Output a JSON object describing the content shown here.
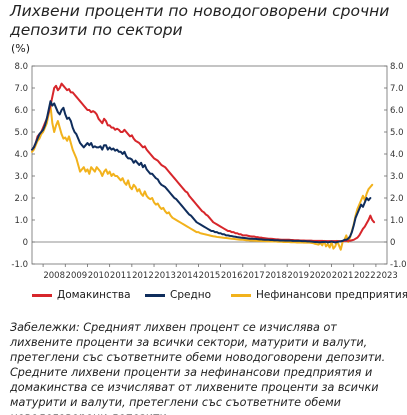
{
  "title": "Лихвени проценти по новодоговорени срочни депозити по сектори",
  "unit": "(%)",
  "note": "Забележки: Средният лихвен процент се изчислява от лихвените проценти за всички сектори, матурити и валути, претеглени със съответните обеми новодоговорени депозити. Средните лихвени проценти за нефинансови предприятия и домакинства се изчисляват от лихвените проценти за всички матурити и валути, претеглени със съответните обеми новодоговорени депозити.",
  "chart_data": {
    "type": "line",
    "ylim": [
      -1,
      8
    ],
    "y_ticks": [
      "-1.0",
      "0",
      "1.0",
      "2.0",
      "3.0",
      "4.0",
      "5.0",
      "6.0",
      "7.0",
      "8.0"
    ],
    "x_tick_labels": [
      "2008",
      "2009",
      "2010",
      "2011",
      "2012",
      "2013",
      "2014",
      "2015",
      "2016",
      "2017",
      "2018",
      "2019",
      "2020",
      "2021",
      "2022",
      "2023"
    ],
    "x_start": 2007.5,
    "x_end": 2023.5,
    "x_frequency": "monthly",
    "grid": false,
    "legend_position": "bottom",
    "series": [
      {
        "name": "Домакинства",
        "color": "#d7262b",
        "values": [
          4.2,
          4.3,
          4.5,
          4.8,
          4.9,
          5.0,
          5.2,
          5.4,
          5.6,
          5.9,
          6.2,
          6.6,
          7.0,
          7.1,
          6.9,
          7.0,
          7.2,
          7.1,
          7.0,
          6.9,
          6.95,
          6.8,
          6.8,
          6.7,
          6.6,
          6.5,
          6.4,
          6.3,
          6.2,
          6.1,
          6.0,
          6.0,
          5.9,
          5.95,
          5.9,
          5.8,
          5.6,
          5.5,
          5.4,
          5.6,
          5.5,
          5.3,
          5.3,
          5.2,
          5.2,
          5.1,
          5.15,
          5.1,
          5.0,
          5.0,
          5.1,
          5.0,
          4.9,
          4.8,
          4.85,
          4.7,
          4.6,
          4.55,
          4.5,
          4.4,
          4.3,
          4.35,
          4.2,
          4.1,
          4.0,
          3.9,
          3.8,
          3.75,
          3.7,
          3.6,
          3.5,
          3.45,
          3.4,
          3.3,
          3.2,
          3.1,
          3.0,
          2.9,
          2.8,
          2.7,
          2.6,
          2.5,
          2.4,
          2.3,
          2.25,
          2.1,
          2.0,
          1.9,
          1.8,
          1.7,
          1.6,
          1.5,
          1.4,
          1.35,
          1.25,
          1.2,
          1.1,
          1.0,
          0.9,
          0.85,
          0.8,
          0.75,
          0.7,
          0.65,
          0.6,
          0.55,
          0.5,
          0.5,
          0.45,
          0.45,
          0.4,
          0.4,
          0.35,
          0.35,
          0.3,
          0.3,
          0.3,
          0.28,
          0.26,
          0.25,
          0.25,
          0.23,
          0.22,
          0.2,
          0.2,
          0.18,
          0.17,
          0.16,
          0.15,
          0.15,
          0.14,
          0.13,
          0.12,
          0.12,
          0.11,
          0.1,
          0.1,
          0.1,
          0.1,
          0.1,
          0.09,
          0.09,
          0.08,
          0.08,
          0.08,
          0.07,
          0.07,
          0.07,
          0.06,
          0.06,
          0.06,
          0.06,
          0.05,
          0.05,
          0.05,
          0.05,
          0.05,
          0.05,
          0.04,
          0.04,
          0.04,
          0.04,
          0.04,
          0.04,
          0.04,
          0.04,
          0.04,
          0.04,
          0.04,
          0.05,
          0.05,
          0.05,
          0.06,
          0.08,
          0.1,
          0.15,
          0.2,
          0.3,
          0.45,
          0.6,
          0.7,
          0.85,
          1.0,
          1.2,
          1.0,
          0.9
        ]
      },
      {
        "name": "Средно",
        "color": "#0f2d5c",
        "values": [
          4.2,
          4.3,
          4.5,
          4.7,
          4.9,
          5.0,
          5.1,
          5.3,
          5.6,
          6.0,
          6.4,
          6.2,
          6.3,
          6.1,
          5.9,
          5.8,
          6.0,
          6.1,
          5.8,
          5.6,
          5.65,
          5.5,
          5.2,
          5.0,
          4.9,
          4.7,
          4.5,
          4.4,
          4.3,
          4.4,
          4.5,
          4.4,
          4.5,
          4.3,
          4.35,
          4.3,
          4.3,
          4.35,
          4.2,
          4.4,
          4.4,
          4.2,
          4.3,
          4.2,
          4.25,
          4.15,
          4.2,
          4.1,
          4.1,
          4.0,
          4.1,
          3.9,
          3.8,
          3.8,
          3.75,
          3.6,
          3.7,
          3.6,
          3.5,
          3.6,
          3.4,
          3.5,
          3.3,
          3.2,
          3.1,
          3.1,
          3.0,
          2.9,
          2.85,
          2.7,
          2.6,
          2.55,
          2.5,
          2.4,
          2.3,
          2.2,
          2.1,
          2.0,
          1.95,
          1.85,
          1.75,
          1.65,
          1.55,
          1.45,
          1.35,
          1.25,
          1.2,
          1.1,
          1.0,
          0.9,
          0.85,
          0.8,
          0.75,
          0.7,
          0.65,
          0.6,
          0.55,
          0.5,
          0.5,
          0.45,
          0.45,
          0.4,
          0.4,
          0.35,
          0.35,
          0.3,
          0.3,
          0.28,
          0.27,
          0.25,
          0.24,
          0.22,
          0.21,
          0.2,
          0.19,
          0.18,
          0.17,
          0.16,
          0.15,
          0.15,
          0.14,
          0.14,
          0.13,
          0.12,
          0.12,
          0.11,
          0.1,
          0.1,
          0.1,
          0.09,
          0.09,
          0.08,
          0.08,
          0.08,
          0.07,
          0.07,
          0.07,
          0.06,
          0.06,
          0.06,
          0.06,
          0.05,
          0.05,
          0.05,
          0.05,
          0.05,
          0.04,
          0.04,
          0.04,
          0.03,
          0.03,
          0.02,
          0.01,
          0.0,
          0.0,
          -0.01,
          -0.01,
          0.0,
          0.0,
          0.01,
          -0.02,
          0.0,
          0.02,
          0.0,
          -0.02,
          0.0,
          0.02,
          0.03,
          0.05,
          0.1,
          0.1,
          0.15,
          0.25,
          0.45,
          0.75,
          1.1,
          1.3,
          1.5,
          1.7,
          1.6,
          1.8,
          2.0,
          1.9,
          2.0
        ]
      },
      {
        "name": "Нефинансови предприятия",
        "color": "#f2b21c",
        "values": [
          4.1,
          4.2,
          4.4,
          4.6,
          4.7,
          4.9,
          5.0,
          5.2,
          5.4,
          5.8,
          6.2,
          5.4,
          5.0,
          5.3,
          5.5,
          5.2,
          4.9,
          4.7,
          4.75,
          4.6,
          4.8,
          4.5,
          4.2,
          4.0,
          3.8,
          3.5,
          3.2,
          3.3,
          3.4,
          3.2,
          3.3,
          3.1,
          3.4,
          3.3,
          3.2,
          3.4,
          3.3,
          3.2,
          3.0,
          3.2,
          3.3,
          3.1,
          3.2,
          3.0,
          3.1,
          3.0,
          3.0,
          2.9,
          2.8,
          2.9,
          2.7,
          2.6,
          2.8,
          2.5,
          2.4,
          2.6,
          2.5,
          2.3,
          2.4,
          2.2,
          2.1,
          2.3,
          2.1,
          2.0,
          1.95,
          2.0,
          1.8,
          1.7,
          1.75,
          1.6,
          1.5,
          1.55,
          1.4,
          1.3,
          1.35,
          1.2,
          1.1,
          1.05,
          1.0,
          0.95,
          0.9,
          0.85,
          0.8,
          0.75,
          0.7,
          0.65,
          0.6,
          0.55,
          0.5,
          0.45,
          0.45,
          0.4,
          0.38,
          0.36,
          0.34,
          0.32,
          0.3,
          0.28,
          0.26,
          0.25,
          0.23,
          0.22,
          0.21,
          0.2,
          0.19,
          0.18,
          0.17,
          0.16,
          0.15,
          0.14,
          0.13,
          0.12,
          0.11,
          0.1,
          0.1,
          0.09,
          0.08,
          0.08,
          0.07,
          0.07,
          0.06,
          0.06,
          0.05,
          0.05,
          0.04,
          0.04,
          0.04,
          0.03,
          0.03,
          0.03,
          0.02,
          0.02,
          0.02,
          0.01,
          0.01,
          0.01,
          0.0,
          0.0,
          0.0,
          0.0,
          -0.01,
          -0.01,
          -0.01,
          -0.02,
          -0.02,
          -0.02,
          -0.02,
          -0.03,
          -0.03,
          -0.03,
          -0.03,
          -0.04,
          -0.05,
          -0.08,
          -0.1,
          -0.12,
          -0.05,
          -0.15,
          0.05,
          -0.2,
          -0.1,
          -0.25,
          0.0,
          -0.3,
          -0.2,
          0.05,
          -0.15,
          -0.35,
          0.0,
          0.1,
          0.3,
          0.0,
          0.2,
          0.5,
          0.8,
          1.2,
          1.5,
          1.7,
          1.9,
          2.1,
          1.9,
          2.2,
          2.4,
          2.5,
          2.6
        ]
      }
    ]
  }
}
